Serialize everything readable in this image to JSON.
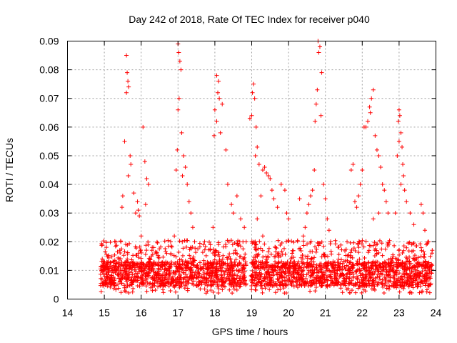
{
  "chart_data": {
    "type": "scatter",
    "title": "Day 242 of 2018, Rate Of TEC Index for receiver p040",
    "xlabel": "GPS time / hours",
    "ylabel": "ROTI / TECUs",
    "xlim": [
      14,
      24
    ],
    "ylim": [
      0,
      0.09
    ],
    "xticks": [
      "14",
      "15",
      "16",
      "17",
      "18",
      "19",
      "20",
      "21",
      "22",
      "23",
      "24"
    ],
    "yticks": [
      "0",
      "0.01",
      "0.02",
      "0.03",
      "0.04",
      "0.05",
      "0.06",
      "0.07",
      "0.08",
      "0.09"
    ],
    "grid": true,
    "marker": "+",
    "series_color": "#ff0000",
    "points": [
      [
        15.6,
        0.085
      ],
      [
        15.62,
        0.079
      ],
      [
        15.64,
        0.076
      ],
      [
        15.66,
        0.074
      ],
      [
        15.6,
        0.072
      ],
      [
        15.55,
        0.055
      ],
      [
        15.7,
        0.05
      ],
      [
        15.72,
        0.047
      ],
      [
        15.65,
        0.043
      ],
      [
        15.5,
        0.036
      ],
      [
        15.48,
        0.032
      ],
      [
        15.45,
        0.02
      ],
      [
        15.42,
        0.017
      ],
      [
        15.8,
        0.037
      ],
      [
        15.85,
        0.03
      ],
      [
        15.9,
        0.034
      ],
      [
        15.92,
        0.031
      ],
      [
        15.95,
        0.029
      ],
      [
        16.05,
        0.06
      ],
      [
        16.1,
        0.048
      ],
      [
        16.15,
        0.042
      ],
      [
        16.2,
        0.04
      ],
      [
        16.0,
        0.022
      ],
      [
        16.12,
        0.033
      ],
      [
        16.3,
        0.018
      ],
      [
        17.0,
        0.089
      ],
      [
        17.02,
        0.086
      ],
      [
        17.05,
        0.083
      ],
      [
        17.08,
        0.08
      ],
      [
        17.03,
        0.07
      ],
      [
        17.0,
        0.066
      ],
      [
        17.1,
        0.058
      ],
      [
        16.98,
        0.052
      ],
      [
        17.15,
        0.05
      ],
      [
        17.2,
        0.046
      ],
      [
        17.12,
        0.043
      ],
      [
        17.25,
        0.04
      ],
      [
        17.3,
        0.034
      ],
      [
        16.95,
        0.045
      ],
      [
        17.35,
        0.03
      ],
      [
        17.4,
        0.025
      ],
      [
        17.45,
        0.02
      ],
      [
        16.9,
        0.022
      ],
      [
        16.8,
        0.02
      ],
      [
        18.05,
        0.078
      ],
      [
        18.1,
        0.076
      ],
      [
        18.08,
        0.072
      ],
      [
        18.12,
        0.07
      ],
      [
        18.0,
        0.066
      ],
      [
        18.05,
        0.062
      ],
      [
        18.2,
        0.068
      ],
      [
        17.98,
        0.057
      ],
      [
        18.15,
        0.058
      ],
      [
        18.3,
        0.052
      ],
      [
        17.95,
        0.025
      ],
      [
        18.35,
        0.04
      ],
      [
        18.45,
        0.033
      ],
      [
        18.5,
        0.03
      ],
      [
        18.6,
        0.036
      ],
      [
        18.7,
        0.028
      ],
      [
        18.8,
        0.025
      ],
      [
        18.85,
        0.02
      ],
      [
        19.05,
        0.075
      ],
      [
        19.02,
        0.072
      ],
      [
        19.08,
        0.07
      ],
      [
        19.0,
        0.064
      ],
      [
        19.12,
        0.06
      ],
      [
        18.95,
        0.063
      ],
      [
        19.15,
        0.053
      ],
      [
        19.1,
        0.05
      ],
      [
        19.2,
        0.047
      ],
      [
        19.3,
        0.045
      ],
      [
        19.35,
        0.046
      ],
      [
        19.4,
        0.044
      ],
      [
        19.45,
        0.043
      ],
      [
        19.5,
        0.042
      ],
      [
        19.25,
        0.036
      ],
      [
        19.55,
        0.038
      ],
      [
        19.6,
        0.035
      ],
      [
        19.7,
        0.032
      ],
      [
        19.8,
        0.04
      ],
      [
        19.9,
        0.038
      ],
      [
        19.95,
        0.03
      ],
      [
        20.0,
        0.028
      ],
      [
        19.15,
        0.028
      ],
      [
        19.3,
        0.022
      ],
      [
        20.8,
        0.09
      ],
      [
        20.85,
        0.088
      ],
      [
        20.82,
        0.086
      ],
      [
        20.9,
        0.079
      ],
      [
        20.78,
        0.073
      ],
      [
        20.75,
        0.068
      ],
      [
        20.72,
        0.062
      ],
      [
        20.88,
        0.064
      ],
      [
        20.7,
        0.045
      ],
      [
        20.65,
        0.038
      ],
      [
        20.6,
        0.036
      ],
      [
        20.55,
        0.033
      ],
      [
        20.5,
        0.03
      ],
      [
        20.45,
        0.025
      ],
      [
        20.95,
        0.04
      ],
      [
        21.0,
        0.035
      ],
      [
        21.05,
        0.028
      ],
      [
        20.4,
        0.022
      ],
      [
        21.1,
        0.024
      ],
      [
        20.3,
        0.035
      ],
      [
        22.3,
        0.073
      ],
      [
        22.25,
        0.07
      ],
      [
        22.2,
        0.067
      ],
      [
        22.22,
        0.065
      ],
      [
        22.15,
        0.062
      ],
      [
        22.1,
        0.06
      ],
      [
        22.05,
        0.06
      ],
      [
        22.35,
        0.057
      ],
      [
        22.4,
        0.052
      ],
      [
        22.45,
        0.05
      ],
      [
        22.0,
        0.045
      ],
      [
        21.95,
        0.04
      ],
      [
        21.9,
        0.036
      ],
      [
        21.85,
        0.032
      ],
      [
        21.8,
        0.034
      ],
      [
        22.5,
        0.046
      ],
      [
        22.55,
        0.04
      ],
      [
        22.6,
        0.038
      ],
      [
        22.65,
        0.034
      ],
      [
        22.7,
        0.03
      ],
      [
        21.75,
        0.047
      ],
      [
        21.7,
        0.045
      ],
      [
        22.45,
        0.03
      ],
      [
        22.3,
        0.028
      ],
      [
        23.0,
        0.066
      ],
      [
        23.02,
        0.064
      ],
      [
        22.98,
        0.062
      ],
      [
        23.05,
        0.058
      ],
      [
        23.0,
        0.055
      ],
      [
        23.08,
        0.053
      ],
      [
        22.95,
        0.05
      ],
      [
        23.1,
        0.047
      ],
      [
        23.12,
        0.043
      ],
      [
        23.05,
        0.04
      ],
      [
        23.15,
        0.038
      ],
      [
        23.2,
        0.034
      ],
      [
        22.9,
        0.03
      ],
      [
        23.3,
        0.03
      ],
      [
        23.4,
        0.026
      ],
      [
        23.6,
        0.033
      ],
      [
        23.65,
        0.03
      ],
      [
        23.7,
        0.024
      ],
      [
        23.8,
        0.02
      ],
      [
        23.9,
        0.017
      ]
    ]
  }
}
